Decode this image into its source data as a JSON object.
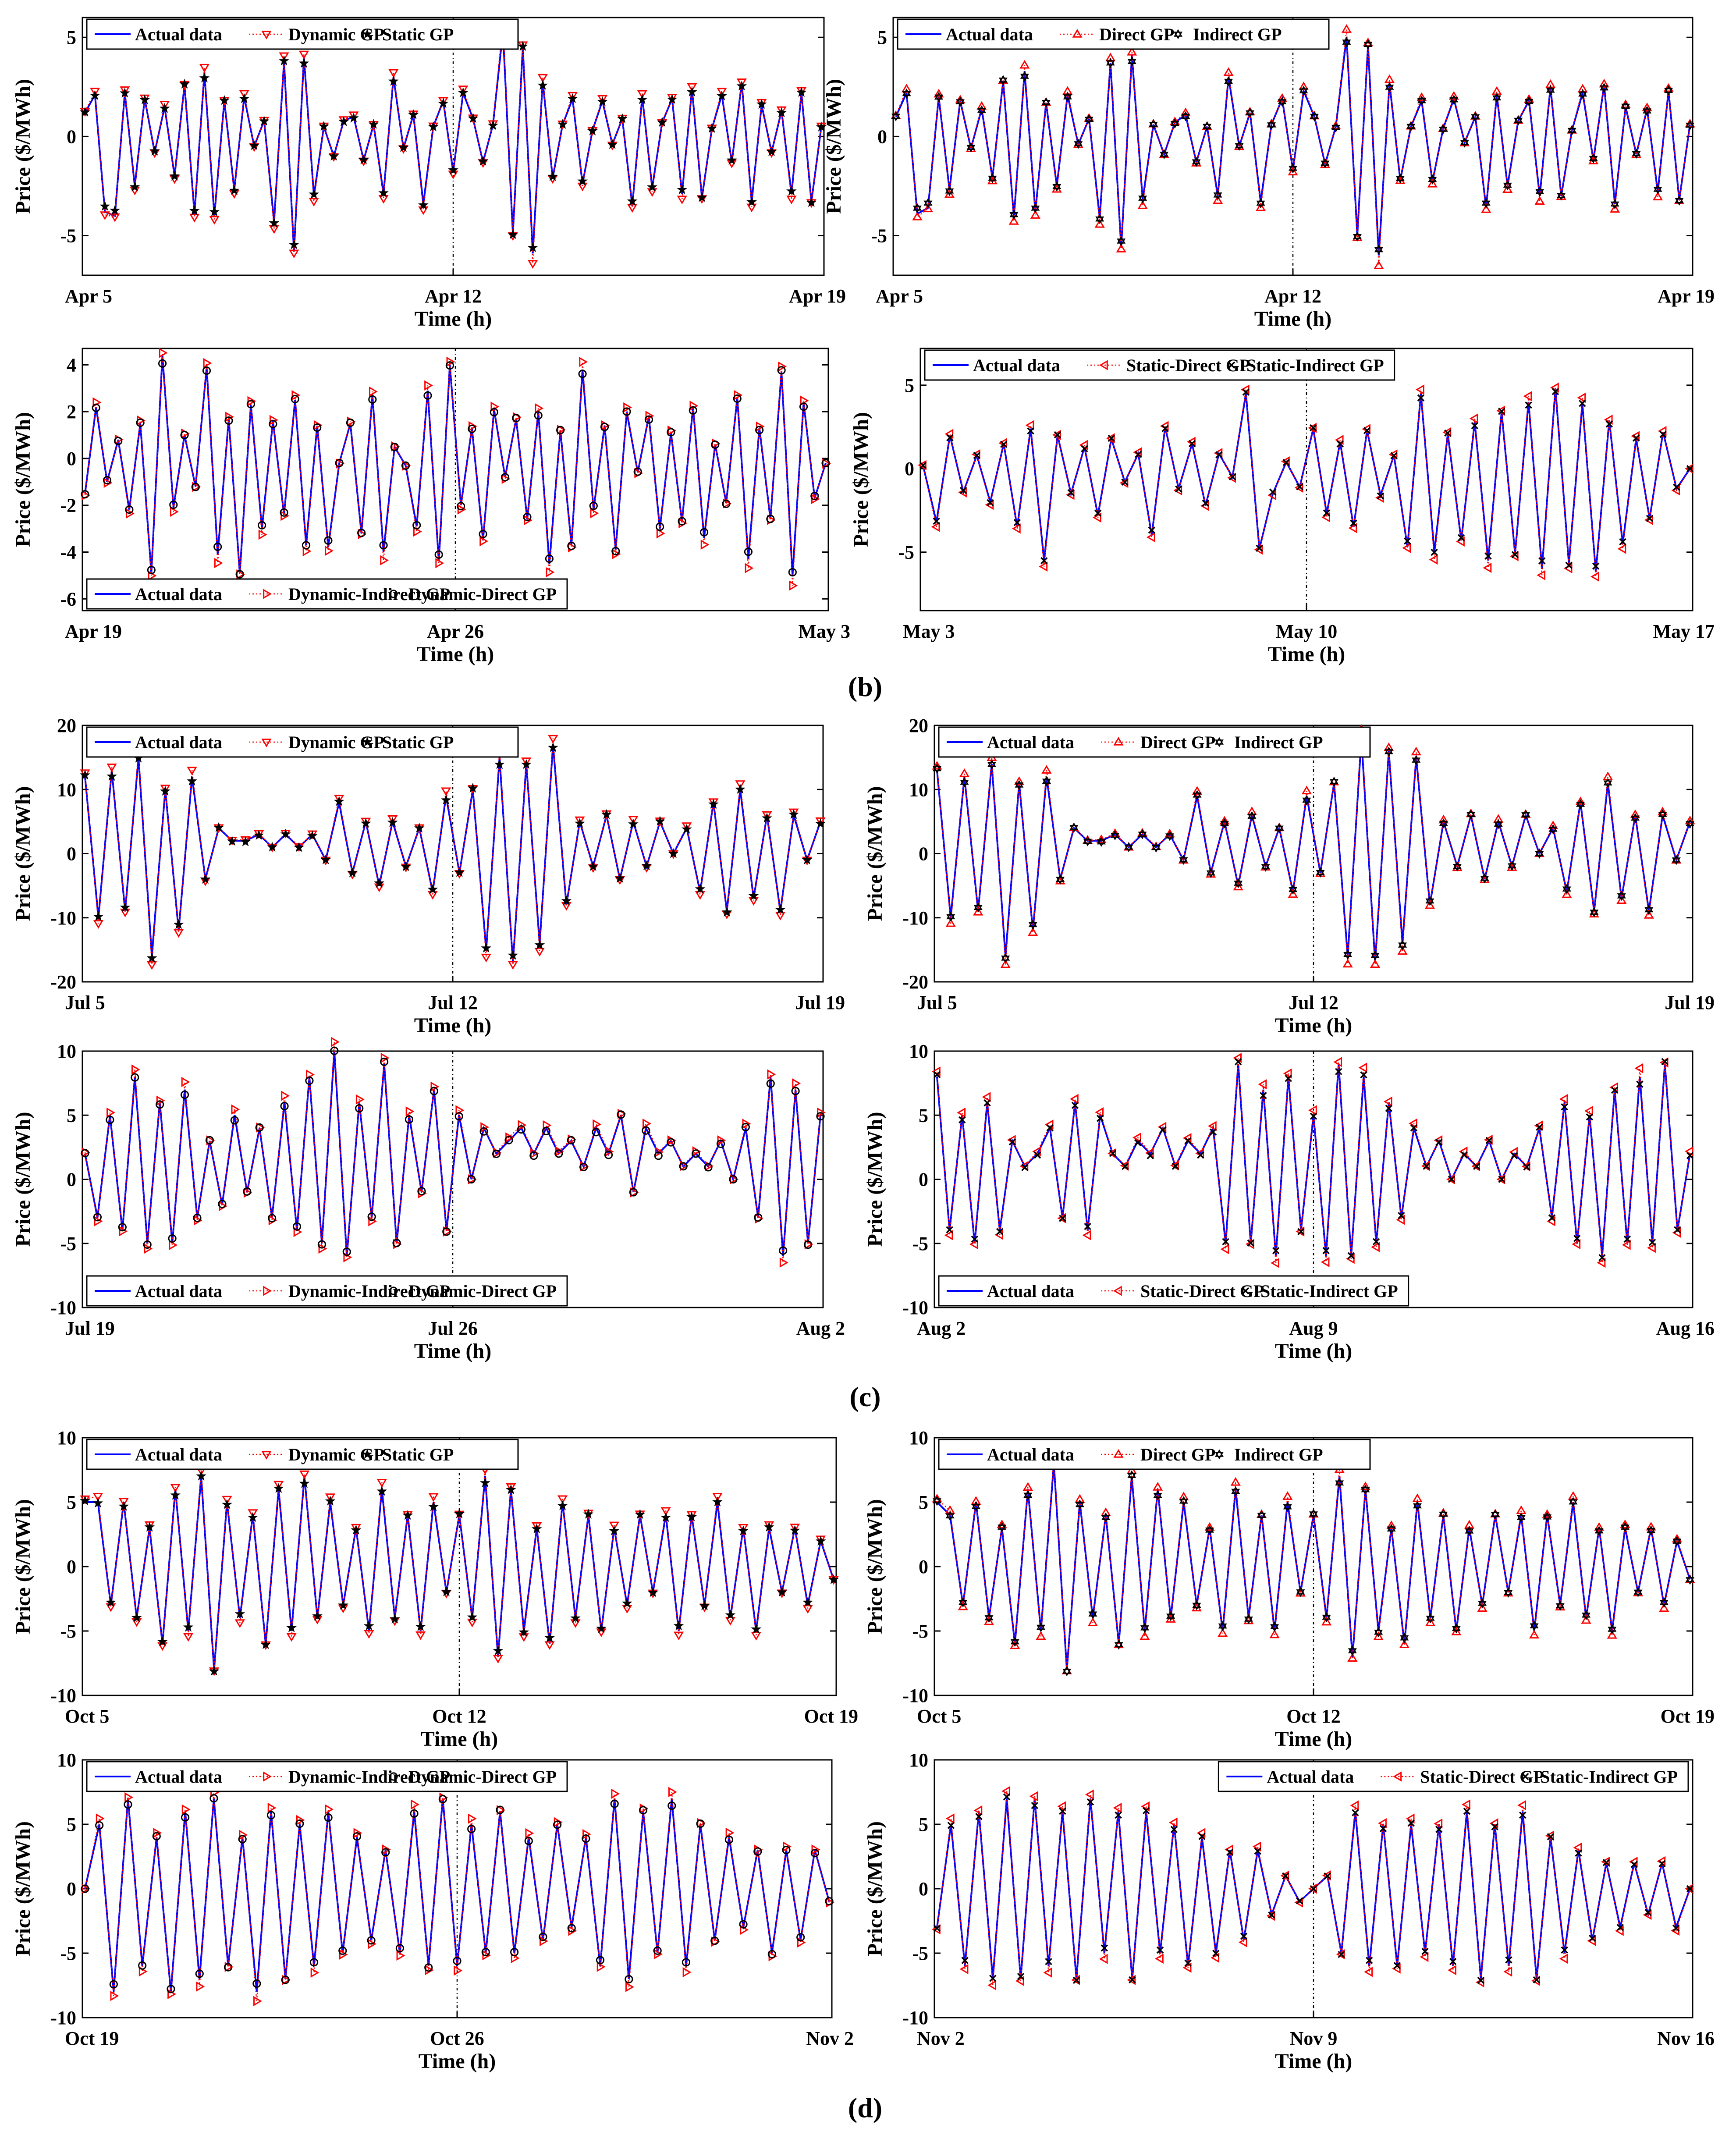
{
  "colors": {
    "actual": "#0000ff",
    "model_a": "#ff0000",
    "model_b": "#000000",
    "vline": "#000000"
  },
  "panel_labels": [
    "(b)",
    "(c)",
    "(d)"
  ],
  "chart_data": [
    {
      "type": "line",
      "panel": "(b)",
      "row": 0,
      "col": 0,
      "ylabel": "Price ($/MWh)",
      "xlabel": "Time (h)",
      "xticks": [
        "Apr 5",
        "Apr 12",
        "Apr 19"
      ],
      "ylim": [
        -7,
        6
      ],
      "yticks": [
        5,
        0,
        -5
      ],
      "yticklabels": [
        "5",
        "0",
        "-5"
      ],
      "legend": [
        "Actual data",
        "Dynamic GP",
        "Static GP"
      ],
      "legend_pos": "top-left",
      "markers": [
        "tri-down",
        "star"
      ],
      "values": [
        1.2,
        2.1,
        -3.8,
        -4.0,
        2.2,
        -2.5,
        1.9,
        -0.8,
        1.5,
        -2.0,
        2.6,
        -3.9,
        3.2,
        -4.0,
        1.8,
        -2.7,
        2.0,
        -0.5,
        0.8,
        -4.3,
        3.8,
        -5.8,
        4.0,
        -3.0,
        0.5,
        -1.0,
        0.8,
        1.0,
        -1.2,
        0.6,
        -2.9,
        3.0,
        -0.6,
        1.1,
        -3.4,
        0.5,
        1.8,
        -1.8,
        2.2,
        0.9,
        -1.3,
        0.6,
        5.3,
        -4.9,
        4.5,
        -5.9,
        2.8,
        -2.1,
        0.6,
        1.9,
        -2.4,
        0.3,
        1.8,
        -0.4,
        0.9,
        -3.5,
        2.0,
        -2.6,
        0.7,
        1.9,
        -2.9,
        2.4,
        -3.1,
        0.4,
        2.1,
        -1.3,
        2.7,
        -3.3,
        1.6,
        -0.8,
        1.3,
        -2.9,
        2.2,
        -3.3,
        0.5
      ]
    },
    {
      "type": "line",
      "panel": "(b)",
      "row": 0,
      "col": 1,
      "ylabel": "Price ($/MWh)",
      "xlabel": "Time (h)",
      "xticks": [
        "Apr 5",
        "Apr 12",
        "Apr 19"
      ],
      "ylim": [
        -7,
        6
      ],
      "yticks": [
        5,
        0,
        -5
      ],
      "yticklabels": [
        "5",
        "0",
        "-5"
      ],
      "legend": [
        "Actual data",
        "Direct GP",
        "Indirect GP"
      ],
      "legend_pos": "top-left",
      "markers": [
        "tri-up",
        "hexagram"
      ],
      "values": [
        1.0,
        2.2,
        -3.9,
        -3.6,
        2.0,
        -2.7,
        1.8,
        -0.6,
        1.4,
        -2.1,
        2.8,
        -4.1,
        3.3,
        -3.8,
        1.7,
        -2.5,
        2.1,
        -0.4,
        0.9,
        -4.1,
        3.7,
        -5.6,
        4.1,
        -3.2,
        0.6,
        -0.9,
        0.7,
        1.1,
        -1.3,
        0.5,
        -3.0,
        3.0,
        -0.5,
        1.2,
        -3.3,
        0.6,
        1.9,
        -1.7,
        2.3,
        1.0,
        -1.4,
        0.5,
        5.0,
        -5.0,
        4.6,
        -6.0,
        2.7,
        -2.2,
        0.5,
        1.8,
        -2.3,
        0.4,
        1.9,
        -0.3,
        1.0,
        -3.6,
        2.1,
        -2.5,
        0.8,
        1.8,
        -3.0,
        2.5,
        -3.0,
        0.3,
        2.2,
        -1.2,
        2.6,
        -3.4,
        1.5,
        -0.9,
        1.4,
        -2.8,
        2.3,
        -3.2,
        0.6
      ]
    },
    {
      "type": "line",
      "panel": "(b)",
      "row": 1,
      "col": 0,
      "ylabel": "Price ($/MWh)",
      "xlabel": "Time (h)",
      "xticks": [
        "Apr 19",
        "Apr 26",
        "May 3"
      ],
      "ylim": [
        -6.5,
        4.7
      ],
      "yticks": [
        4,
        2,
        0,
        -2,
        -4,
        -6
      ],
      "yticklabels": [
        "4",
        "2",
        "0",
        "-2",
        "-4",
        "-6"
      ],
      "legend": [
        "Actual data",
        "Dynamic-Indirect GP",
        "Dynamic-Direct GP"
      ],
      "legend_pos": "bottom-left",
      "markers": [
        "tri-right",
        "circle"
      ],
      "values": [
        -1.5,
        2.2,
        -1.0,
        0.8,
        -2.2,
        1.5,
        -4.9,
        4.4,
        -2.1,
        1.0,
        -1.2,
        3.9,
        -4.1,
        1.7,
        -4.9,
        2.3,
        -3.0,
        1.6,
        -2.4,
        2.5,
        -3.7,
        1.4,
        -3.8,
        -0.2,
        1.5,
        -3.2,
        2.7,
        -4.0,
        0.5,
        -0.3,
        -2.9,
        2.9,
        -4.4,
        4.0,
        -2.0,
        1.3,
        -3.5,
        2.1,
        -0.8,
        1.7,
        -2.6,
        2.0,
        -4.5,
        1.2,
        -3.7,
        3.8,
        -2.2,
        1.4,
        -3.9,
        2.0,
        -0.6,
        1.8,
        -3.0,
        1.1,
        -2.7,
        2.2,
        -3.4,
        0.6,
        -1.9,
        2.6,
        -4.3,
        1.3,
        -2.6,
        3.7,
        -5.0,
        2.4,
        -1.7,
        -0.2
      ]
    },
    {
      "type": "line",
      "panel": "(b)",
      "row": 1,
      "col": 1,
      "ylabel": "Price ($/MWh)",
      "xlabel": "Time (h)",
      "xticks": [
        "May 3",
        "May 10",
        "May 17"
      ],
      "ylim": [
        -8.5,
        7.2
      ],
      "yticks": [
        5,
        0,
        -5
      ],
      "yticklabels": [
        "5",
        "0",
        "-5"
      ],
      "legend": [
        "Actual data",
        "Static-Direct GP",
        "Static-Indirect GP"
      ],
      "legend_pos": "top-left",
      "markers": [
        "tri-left",
        "cross"
      ],
      "values": [
        0.2,
        -3.2,
        2.0,
        -1.4,
        0.8,
        -2.0,
        1.5,
        -3.5,
        2.4,
        -5.5,
        2.0,
        -1.5,
        1.3,
        -2.8,
        1.8,
        -0.8,
        0.9,
        -4.0,
        2.5,
        -1.2,
        1.5,
        -2.2,
        0.9,
        -0.5,
        4.5,
        -4.8,
        -1.5,
        0.4,
        -1.1,
        2.4,
        -2.7,
        1.6,
        -3.5,
        2.3,
        -1.6,
        0.8,
        -4.7,
        4.5,
        -5.0,
        2.1,
        -4.3,
        2.8,
        -5.5,
        3.4,
        -5.1,
        4.0,
        -6.0,
        4.8,
        -5.7,
        3.9,
        -6.2,
        2.9,
        -4.5,
        1.8,
        -3.0,
        2.2,
        -1.2,
        0.0
      ]
    },
    {
      "type": "line",
      "panel": "(c)",
      "row": 0,
      "col": 0,
      "ylabel": "Price ($/MWh)",
      "xlabel": "Time (h)",
      "xticks": [
        "Jul 5",
        "Jul 12",
        "Jul 19"
      ],
      "ylim": [
        -20,
        20
      ],
      "yticks": [
        20,
        10,
        0,
        -10,
        -20
      ],
      "yticklabels": [
        "20",
        "10",
        "0",
        "-10",
        "-20"
      ],
      "legend": [
        "Actual data",
        "Dynamic GP",
        "Static GP"
      ],
      "legend_pos": "top-left",
      "markers": [
        "tri-down",
        "star"
      ],
      "values": [
        12,
        -10,
        13,
        -9,
        15,
        -16,
        10,
        -12,
        12,
        -4,
        4,
        2,
        2,
        3,
        1,
        3,
        1,
        3,
        -1,
        8,
        -3,
        5,
        -5,
        5,
        -2,
        4,
        -6,
        9,
        -3,
        10,
        -15,
        15,
        -17,
        14,
        -14,
        17,
        -8,
        5,
        -2,
        6,
        -4,
        5,
        -2,
        5,
        0,
        4,
        -6,
        8,
        -9,
        10,
        -7,
        6,
        -9,
        6,
        -1,
        5
      ]
    },
    {
      "type": "line",
      "panel": "(c)",
      "row": 0,
      "col": 1,
      "ylabel": "Price ($/MWh)",
      "xlabel": "Time (h)",
      "xticks": [
        "Jul 5",
        "Jul 12",
        "Jul 19"
      ],
      "ylim": [
        -20,
        20
      ],
      "yticks": [
        20,
        10,
        0,
        -10,
        -20
      ],
      "yticklabels": [
        "20",
        "10",
        "0",
        "-10",
        "-20"
      ],
      "legend": [
        "Actual data",
        "Direct GP",
        "Indirect GP"
      ],
      "legend_pos": "top-left",
      "markers": [
        "tri-up",
        "hexagram"
      ],
      "values": [
        13,
        -10,
        12,
        -9,
        14,
        -16,
        11,
        -12,
        12,
        -4,
        4,
        2,
        2,
        3,
        1,
        3,
        1,
        3,
        -1,
        9,
        -3,
        5,
        -5,
        6,
        -2,
        4,
        -6,
        9,
        -3,
        11,
        -16,
        18,
        -17,
        16,
        -14,
        15,
        -8,
        5,
        -2,
        6,
        -4,
        5,
        -2,
        6,
        0,
        4,
        -6,
        8,
        -9,
        11,
        -7,
        6,
        -9,
        6,
        -1,
        5
      ]
    },
    {
      "type": "line",
      "panel": "(c)",
      "row": 1,
      "col": 0,
      "ylabel": "Price ($/MWh)",
      "xlabel": "Time (h)",
      "xticks": [
        "Jul 19",
        "Jul 26",
        "Aug 2"
      ],
      "ylim": [
        -10,
        10
      ],
      "yticks": [
        10,
        5,
        0,
        -5,
        -10
      ],
      "yticklabels": [
        "10",
        "5",
        "0",
        "-5",
        "-10"
      ],
      "legend": [
        "Actual data",
        "Dynamic-Indirect GP",
        "Dynamic-Direct GP"
      ],
      "legend_pos": "bottom-left",
      "markers": [
        "tri-right",
        "circle"
      ],
      "values": [
        2,
        -3,
        5,
        -4,
        8,
        -5,
        6,
        -5,
        7,
        -3,
        3,
        -2,
        5,
        -1,
        4,
        -3,
        6,
        -4,
        8,
        -5,
        10,
        -6,
        6,
        -3,
        9,
        -5,
        5,
        -1,
        7,
        -4,
        5,
        0,
        4,
        2,
        3,
        4,
        2,
        4,
        2,
        3,
        1,
        4,
        2,
        5,
        -1,
        4,
        2,
        3,
        1,
        2,
        1,
        3,
        0,
        4,
        -3,
        8,
        -6,
        7,
        -5,
        5
      ]
    },
    {
      "type": "line",
      "panel": "(c)",
      "row": 1,
      "col": 1,
      "ylabel": "Price ($/MWh)",
      "xlabel": "Time (h)",
      "xticks": [
        "Aug 2",
        "Aug 9",
        "Aug 16"
      ],
      "ylim": [
        -10,
        10
      ],
      "yticks": [
        10,
        5,
        0,
        -5,
        -10
      ],
      "yticklabels": [
        "10",
        "5",
        "0",
        "-5",
        "-10"
      ],
      "legend": [
        "Actual data",
        "Static-Direct GP",
        "Static-Indirect GP"
      ],
      "legend_pos": "bottom-left",
      "markers": [
        "tri-left",
        "cross"
      ],
      "values": [
        8,
        -4,
        5,
        -5,
        6,
        -4,
        3,
        1,
        2,
        4,
        -3,
        6,
        -4,
        5,
        2,
        1,
        3,
        2,
        4,
        1,
        3,
        2,
        4,
        -5,
        9,
        -5,
        7,
        -6,
        8,
        -4,
        5,
        -6,
        9,
        -6,
        8,
        -5,
        6,
        -3,
        4,
        1,
        3,
        0,
        2,
        1,
        3,
        0,
        2,
        1,
        4,
        -3,
        6,
        -5,
        5,
        -6,
        7,
        -5,
        8,
        -5,
        9,
        -4,
        2
      ]
    },
    {
      "type": "line",
      "panel": "(d)",
      "row": 0,
      "col": 0,
      "ylabel": "Price ($/MWh)",
      "xlabel": "Time (h)",
      "xticks": [
        "Oct 5",
        "Oct 12",
        "Oct 19"
      ],
      "ylim": [
        -10,
        10
      ],
      "yticks": [
        10,
        5,
        0,
        -5,
        -10
      ],
      "yticklabels": [
        "10",
        "5",
        "0",
        "-5",
        "-10"
      ],
      "legend": [
        "Actual data",
        "Dynamic GP",
        "Static GP"
      ],
      "legend_pos": "top-left",
      "markers": [
        "tri-down",
        "star"
      ],
      "values": [
        5,
        5,
        -3,
        5,
        -4,
        3,
        -6,
        6,
        -5,
        7,
        -8,
        5,
        -4,
        4,
        -6,
        6,
        -5,
        7,
        -4,
        5,
        -3,
        3,
        -5,
        6,
        -4,
        4,
        -5,
        5,
        -2,
        4,
        -4,
        7,
        -7,
        6,
        -5,
        3,
        -6,
        5,
        -4,
        4,
        -5,
        3,
        -3,
        4,
        -2,
        4,
        -5,
        4,
        -3,
        5,
        -4,
        3,
        -5,
        3,
        -2,
        3,
        -3,
        2,
        -1
      ]
    },
    {
      "type": "line",
      "panel": "(d)",
      "row": 0,
      "col": 1,
      "ylabel": "Price ($/MWh)",
      "xlabel": "Time (h)",
      "xticks": [
        "Oct 5",
        "Oct 12",
        "Oct 19"
      ],
      "ylim": [
        -10,
        10
      ],
      "yticks": [
        10,
        5,
        0,
        -5,
        -10
      ],
      "yticklabels": [
        "10",
        "5",
        "0",
        "-5",
        "-10"
      ],
      "legend": [
        "Actual data",
        "Direct GP",
        "Indirect GP"
      ],
      "legend_pos": "top-left",
      "markers": [
        "tri-up",
        "hexagram"
      ],
      "values": [
        5,
        4,
        -3,
        5,
        -4,
        3,
        -6,
        6,
        -5,
        8,
        -8,
        5,
        -4,
        4,
        -6,
        7,
        -5,
        6,
        -4,
        5,
        -3,
        3,
        -5,
        6,
        -4,
        4,
        -5,
        5,
        -2,
        4,
        -4,
        7,
        -7,
        6,
        -5,
        3,
        -6,
        5,
        -4,
        4,
        -5,
        3,
        -3,
        4,
        -2,
        4,
        -5,
        4,
        -3,
        5,
        -4,
        3,
        -5,
        3,
        -2,
        3,
        -3,
        2,
        -1
      ]
    },
    {
      "type": "line",
      "panel": "(d)",
      "row": 1,
      "col": 0,
      "ylabel": "Price ($/MWh)",
      "xlabel": "Time (h)",
      "xticks": [
        "Oct 19",
        "Oct 26",
        "Nov 2"
      ],
      "ylim": [
        -10,
        10
      ],
      "yticks": [
        10,
        5,
        0,
        -5,
        -10
      ],
      "yticklabels": [
        "10",
        "5",
        "0",
        "-5",
        "-10"
      ],
      "legend": [
        "Actual data",
        "Dynamic-Indirect GP",
        "Dynamic-Direct GP"
      ],
      "legend_pos": "top-left",
      "markers": [
        "tri-right",
        "circle"
      ],
      "values": [
        0,
        5,
        -8,
        7,
        -6,
        4,
        -8,
        6,
        -7,
        7,
        -6,
        4,
        -8,
        6,
        -7,
        5,
        -6,
        6,
        -5,
        4,
        -4,
        3,
        -5,
        6,
        -6,
        7,
        -6,
        5,
        -5,
        6,
        -5,
        4,
        -4,
        5,
        -3,
        4,
        -6,
        7,
        -7,
        6,
        -5,
        7,
        -6,
        5,
        -4,
        4,
        -3,
        3,
        -5,
        3,
        -4,
        3,
        -1
      ]
    },
    {
      "type": "line",
      "panel": "(d)",
      "row": 1,
      "col": 1,
      "ylabel": "Price ($/MWh)",
      "xlabel": "Time (h)",
      "xticks": [
        "Nov 2",
        "Nov 9",
        "Nov 16"
      ],
      "ylim": [
        -10,
        10
      ],
      "yticks": [
        10,
        5,
        0,
        -5,
        -10
      ],
      "yticklabels": [
        "10",
        "5",
        "0",
        "-5",
        "-10"
      ],
      "legend": [
        "Actual data",
        "Static-Direct GP",
        "Static-Indirect GP"
      ],
      "legend_pos": "top-right",
      "markers": [
        "tri-left",
        "cross"
      ],
      "values": [
        -3,
        5,
        -6,
        6,
        -7,
        7,
        -7,
        7,
        -6,
        6,
        -7,
        7,
        -5,
        6,
        -7,
        6,
        -5,
        5,
        -6,
        4,
        -5,
        3,
        -4,
        3,
        -2,
        1,
        -1,
        0,
        1,
        -5,
        6,
        -6,
        5,
        -6,
        5,
        -5,
        5,
        -6,
        6,
        -7,
        5,
        -6,
        6,
        -7,
        4,
        -5,
        3,
        -4,
        2,
        -3,
        2,
        -2,
        2,
        -3,
        0
      ]
    }
  ]
}
